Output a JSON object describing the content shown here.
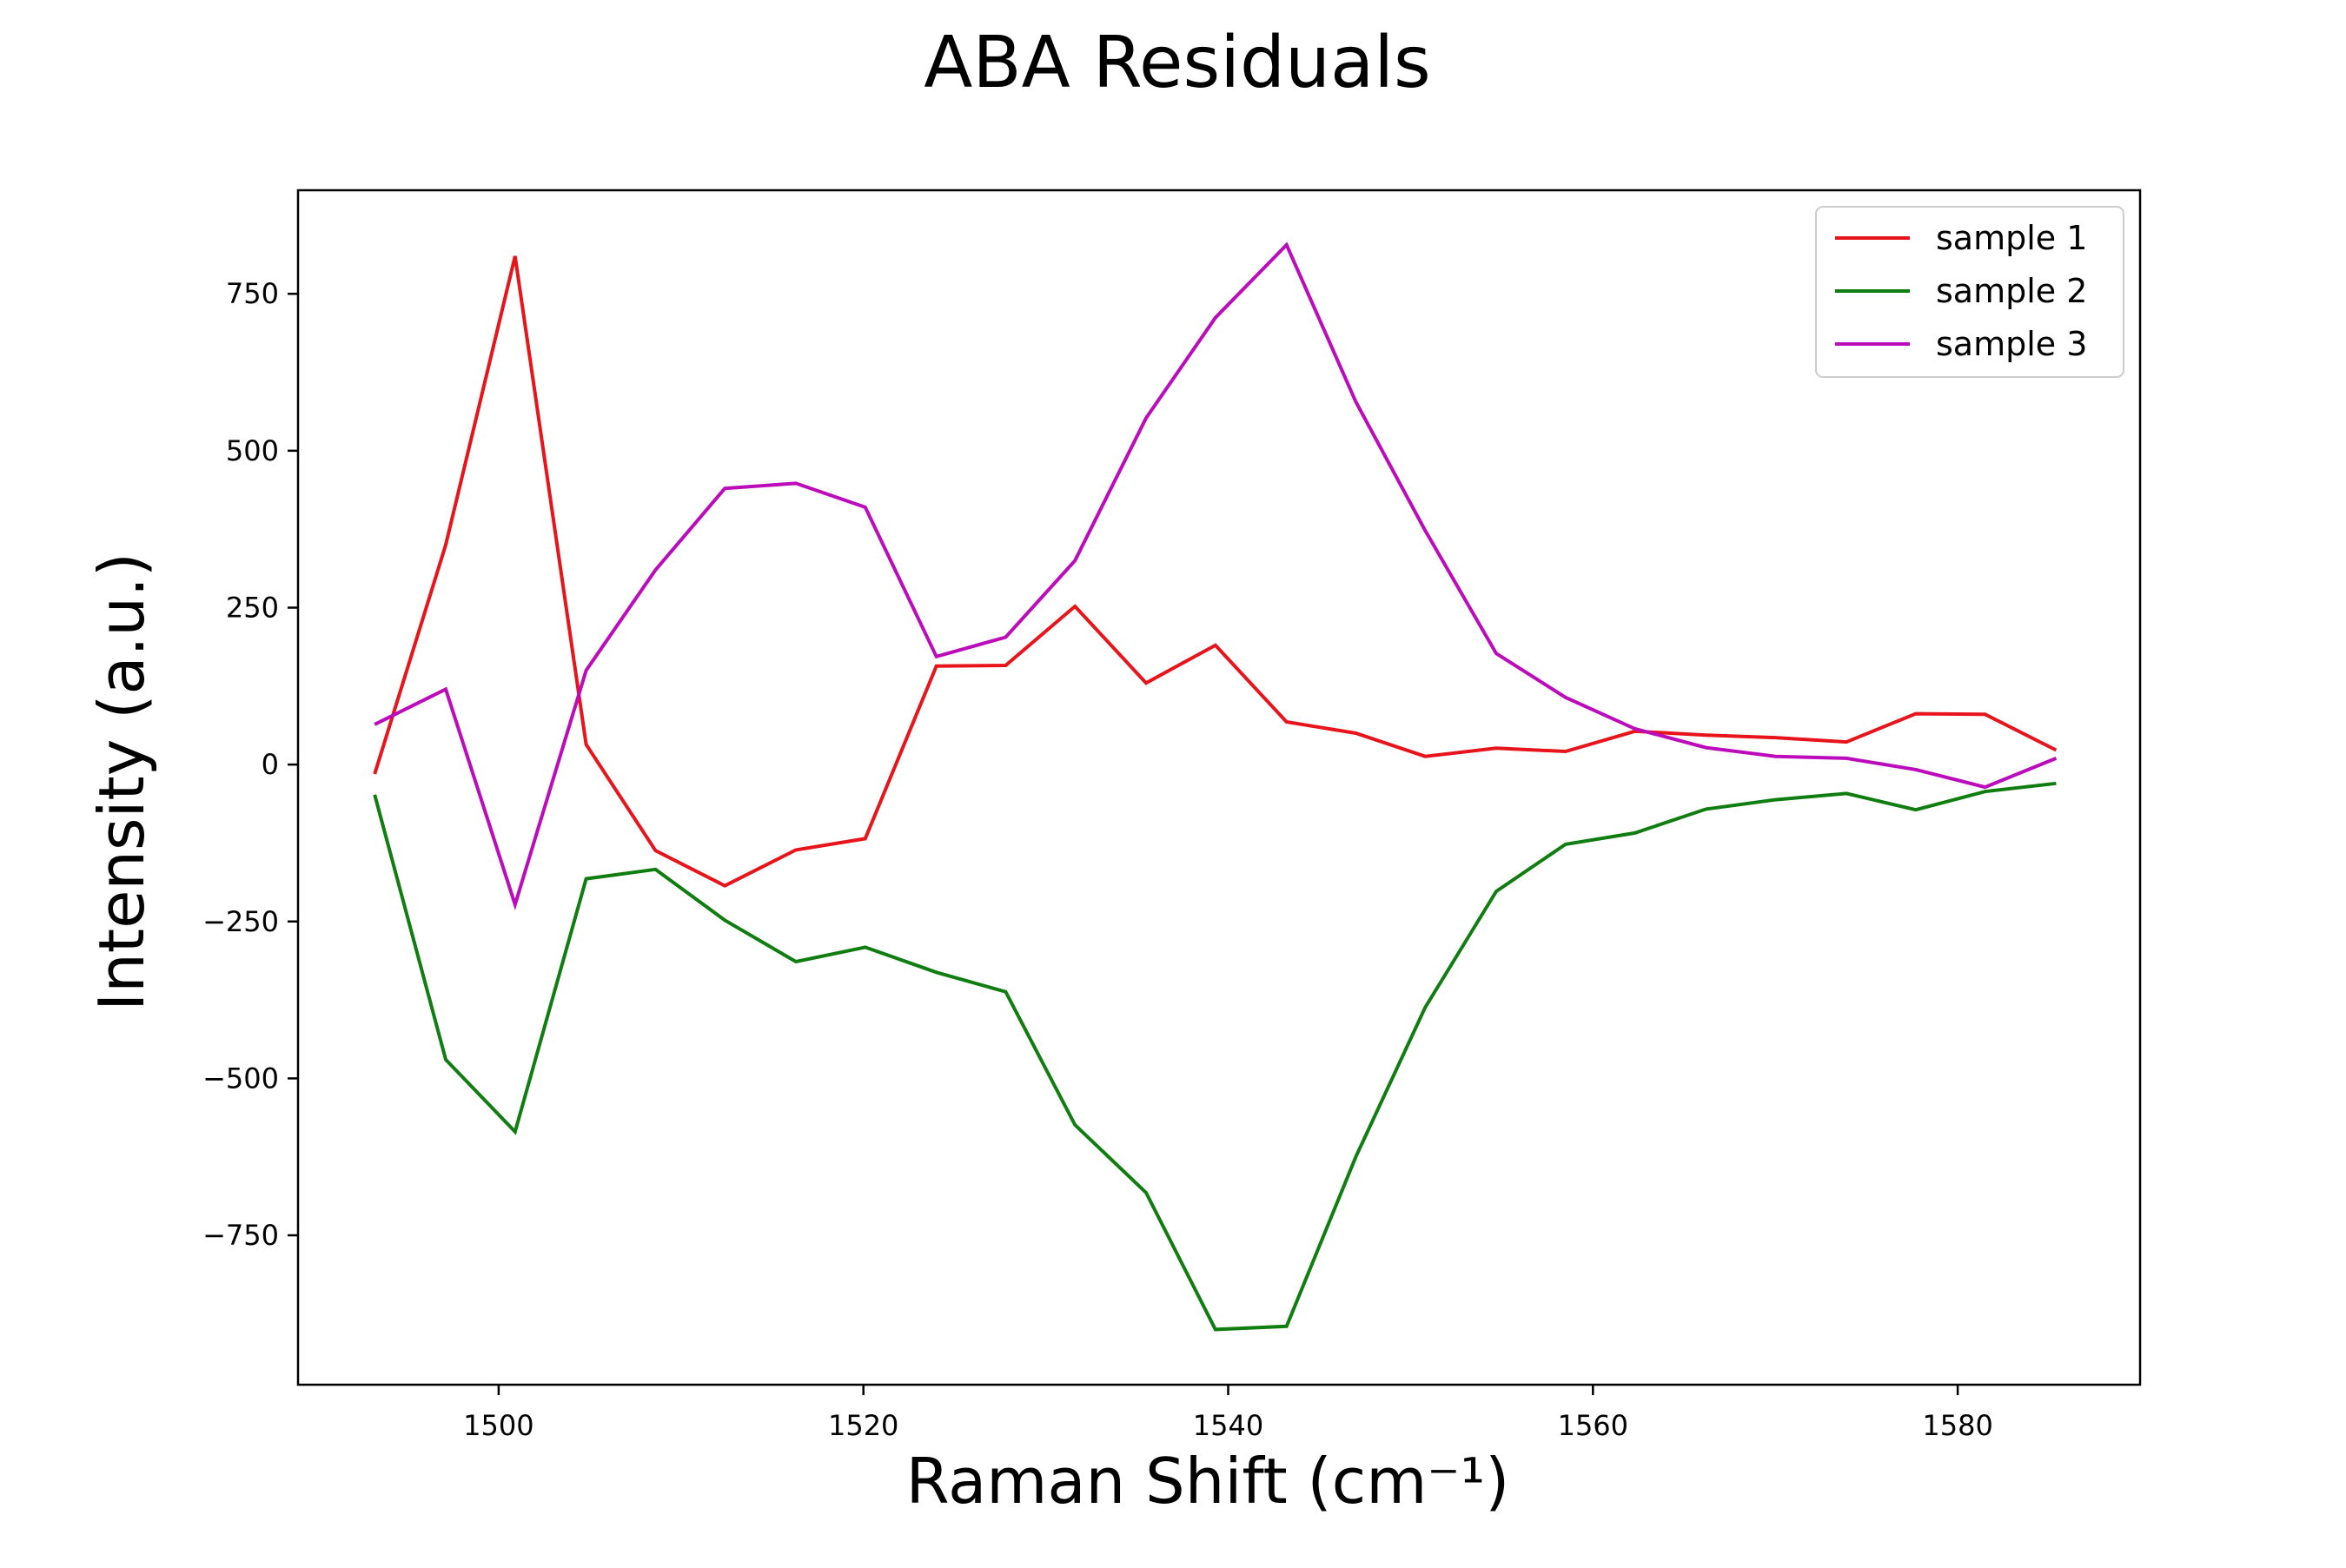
{
  "chart_data": {
    "type": "line",
    "title": "ABA Residuals",
    "xlabel": "Raman Shift (cm⁻¹)",
    "ylabel": "Intensity (a.u.)",
    "xlim": [
      1489,
      1590
    ],
    "ylim": [
      -988,
      915
    ],
    "xticks": [
      1500,
      1520,
      1540,
      1560,
      1580
    ],
    "xtick_labels": [
      "1500",
      "1520",
      "1540",
      "1560",
      "1580"
    ],
    "yticks": [
      -750,
      -500,
      -250,
      0,
      250,
      500,
      750
    ],
    "ytick_labels": [
      "−750",
      "−500",
      "−250",
      "0",
      "250",
      "500",
      "750"
    ],
    "grid": false,
    "legend_position": "top-right",
    "x": [
      1493.2,
      1497.1,
      1500.9,
      1504.8,
      1508.6,
      1512.4,
      1516.3,
      1520.1,
      1524.0,
      1527.8,
      1531.6,
      1535.5,
      1539.3,
      1543.2,
      1547.0,
      1550.8,
      1554.7,
      1558.5,
      1562.3,
      1566.2,
      1570.0,
      1573.9,
      1577.7,
      1581.5,
      1585.4
    ],
    "series": [
      {
        "name": "sample 1",
        "color": "#e8141b",
        "values": [
          -15,
          350,
          810,
          32,
          -137,
          -193,
          -136,
          -118,
          157,
          158,
          252,
          130,
          190,
          68,
          50,
          13,
          26,
          21,
          53,
          47,
          43,
          36,
          81,
          80,
          23
        ]
      },
      {
        "name": "sample 2",
        "color": "#107d10",
        "values": [
          -48,
          -470,
          -585,
          -182,
          -167,
          -248,
          -314,
          -291,
          -331,
          -362,
          -574,
          -682,
          -900,
          -895,
          -625,
          -387,
          -202,
          -127,
          -109,
          -71,
          -56,
          -46,
          -72,
          -43,
          -30
        ]
      },
      {
        "name": "sample 3",
        "color": "#bb0bbb",
        "values": [
          64,
          120,
          -223,
          150,
          310,
          440,
          448,
          410,
          172,
          203,
          325,
          552,
          712,
          828,
          578,
          373,
          177,
          107,
          57,
          27,
          13,
          10,
          -8,
          -36,
          10
        ]
      }
    ]
  }
}
